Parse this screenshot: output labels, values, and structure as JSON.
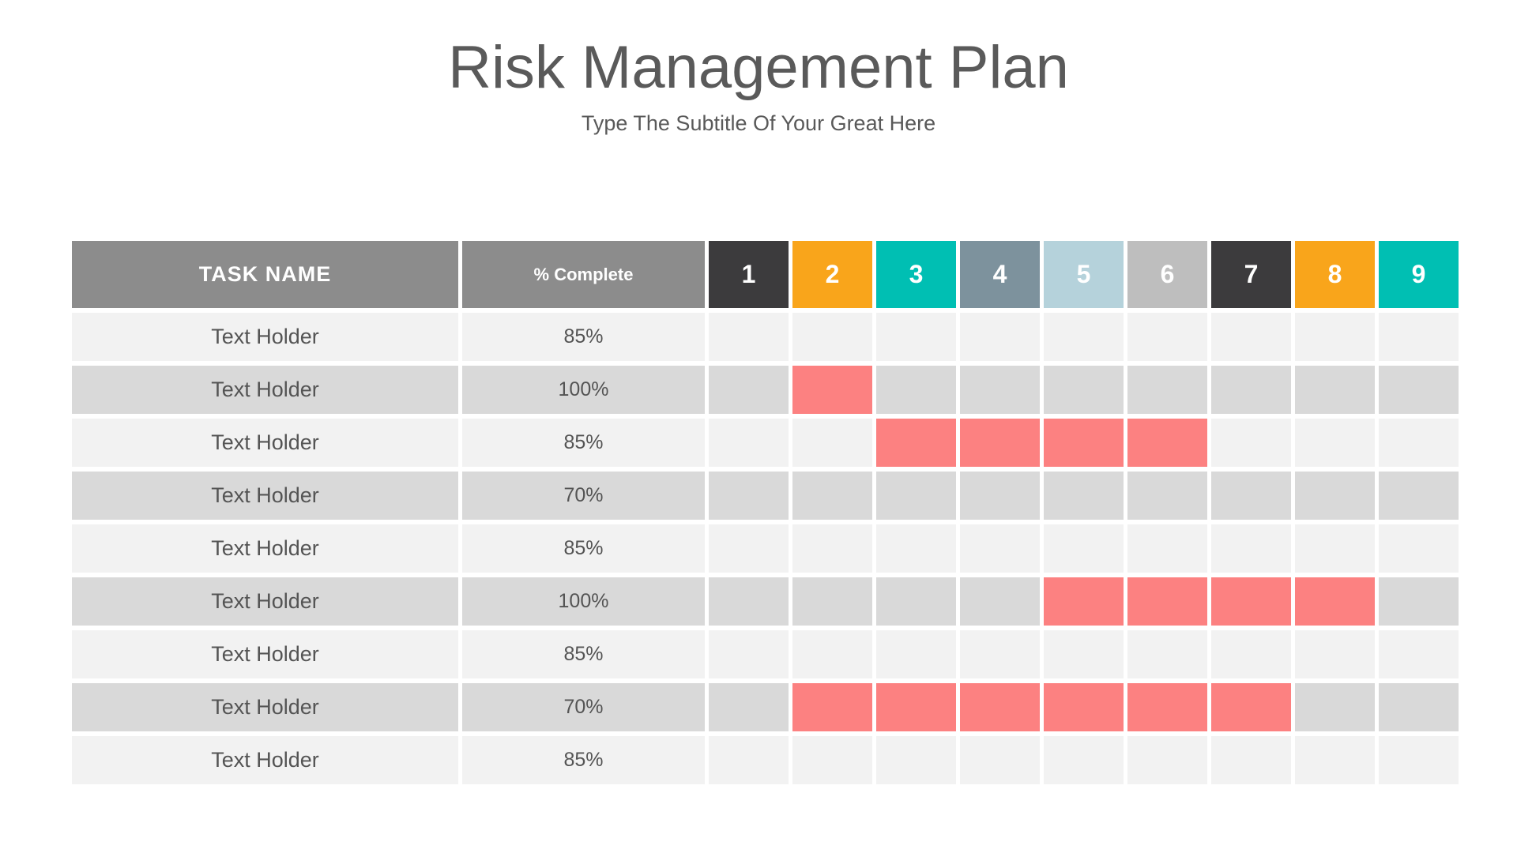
{
  "header": {
    "title": "Risk Management Plan",
    "subtitle": "Type The Subtitle Of Your Great Here"
  },
  "colors": {
    "title_text": "#5A5A5A",
    "subtitle_text": "#595959",
    "table_header_bg": "#8C8C8C",
    "table_header_text": "#FFFFFF",
    "row_light_bg": "#F2F2F2",
    "row_dark_bg": "#D9D9D9",
    "cell_text": "#545454",
    "gantt_bar": "#FC8181",
    "period_dark": "#3C3B3D",
    "period_orange": "#F9A51B",
    "period_teal": "#00BFB3",
    "period_slate": "#7D929D",
    "period_light_blue": "#B5D2DB",
    "period_gray": "#BEBEBE"
  },
  "table": {
    "task_header": "TASK NAME",
    "complete_header": "% Complete",
    "periods": [
      {
        "label": "1",
        "color": "#3C3B3D"
      },
      {
        "label": "2",
        "color": "#F9A51B"
      },
      {
        "label": "3",
        "color": "#00BFB3"
      },
      {
        "label": "4",
        "color": "#7D929D"
      },
      {
        "label": "5",
        "color": "#B5D2DB"
      },
      {
        "label": "6",
        "color": "#BEBEBE"
      },
      {
        "label": "7",
        "color": "#3C3B3D"
      },
      {
        "label": "8",
        "color": "#F9A51B"
      },
      {
        "label": "9",
        "color": "#00BFB3"
      }
    ]
  },
  "chart_data": {
    "type": "table",
    "subtype": "gantt",
    "title": "Risk Management Plan",
    "subtitle": "Type The Subtitle Of Your Great Here",
    "columns": [
      "TASK NAME",
      "% Complete",
      "1",
      "2",
      "3",
      "4",
      "5",
      "6",
      "7",
      "8",
      "9"
    ],
    "rows": [
      {
        "task": "Text Holder",
        "percent_complete": 85,
        "bar_periods": []
      },
      {
        "task": "Text Holder",
        "percent_complete": 100,
        "bar_periods": [
          2
        ]
      },
      {
        "task": "Text Holder",
        "percent_complete": 85,
        "bar_periods": [
          3,
          4,
          5,
          6
        ]
      },
      {
        "task": "Text Holder",
        "percent_complete": 70,
        "bar_periods": []
      },
      {
        "task": "Text Holder",
        "percent_complete": 85,
        "bar_periods": []
      },
      {
        "task": "Text Holder",
        "percent_complete": 100,
        "bar_periods": [
          5,
          6,
          7,
          8
        ]
      },
      {
        "task": "Text Holder",
        "percent_complete": 85,
        "bar_periods": []
      },
      {
        "task": "Text Holder",
        "percent_complete": 70,
        "bar_periods": [
          2,
          3,
          4,
          5,
          6,
          7
        ]
      },
      {
        "task": "Text Holder",
        "percent_complete": 85,
        "bar_periods": []
      }
    ],
    "bar_color": "#FC8181",
    "legend": "none",
    "grid": "white separators between all cells",
    "row_shading": [
      "light",
      "dark",
      "light",
      "dark",
      "light",
      "dark",
      "light",
      "dark",
      "light"
    ]
  }
}
